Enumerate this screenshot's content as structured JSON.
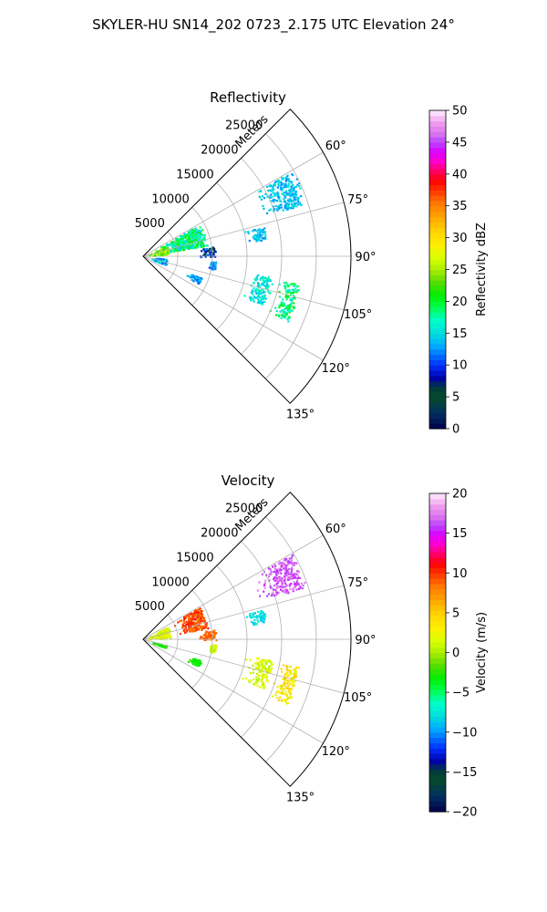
{
  "figure": {
    "title": "SKYLER-HU  SN14_202  0723_2.175 UTC Elevation 24°"
  },
  "chart_data": [
    {
      "type": "polar-sector",
      "title": "Reflectivity",
      "range_label": "Meters",
      "angle_range_deg": [
        45,
        135
      ],
      "r_max": 30000,
      "r_ticks": [
        5000,
        10000,
        15000,
        20000,
        25000
      ],
      "r_tick_labels": [
        "5000",
        "10000",
        "15000",
        "20000",
        "25000"
      ],
      "theta_ticks_deg": [
        60,
        75,
        90,
        105,
        120,
        135
      ],
      "theta_tick_labels": [
        "60°",
        "75°",
        "90°",
        "105°",
        "120°",
        "135°"
      ],
      "grid": true,
      "colorbar": {
        "label": "Reflectivity dBZ",
        "range": [
          0,
          50
        ],
        "ticks": [
          0,
          5,
          10,
          15,
          20,
          25,
          30,
          35,
          40,
          45,
          50
        ],
        "tick_labels": [
          "0",
          "5",
          "10",
          "15",
          "20",
          "25",
          "30",
          "35",
          "40",
          "45",
          "50"
        ]
      },
      "echo_regions": [
        {
          "theta": [
            60,
            80
          ],
          "r": [
            500,
            9500
          ],
          "value_range": [
            14,
            22
          ]
        },
        {
          "theta": [
            66,
            84
          ],
          "r": [
            300,
            3800
          ],
          "value_range": [
            20,
            27
          ]
        },
        {
          "theta": [
            82,
            90
          ],
          "r": [
            7000,
            10500
          ],
          "value_range": [
            3,
            12
          ]
        },
        {
          "theta": [
            94,
            100
          ],
          "r": [
            9000,
            10500
          ],
          "value_range": [
            9,
            15
          ]
        },
        {
          "theta": [
            96,
            110
          ],
          "r": [
            300,
            3500
          ],
          "value_range": [
            10,
            17
          ]
        },
        {
          "theta": [
            110,
            116
          ],
          "r": [
            6000,
            9000
          ],
          "value_range": [
            10,
            16
          ]
        },
        {
          "theta": [
            99,
            112
          ],
          "r": [
            14500,
            19000
          ],
          "value_range": [
            13,
            18
          ]
        },
        {
          "theta": [
            100,
            114
          ],
          "r": [
            19000,
            23000
          ],
          "value_range": [
            15,
            22
          ]
        },
        {
          "theta": [
            60,
            72
          ],
          "r": [
            16000,
            25000
          ],
          "value_range": [
            12,
            16
          ]
        },
        {
          "theta": [
            76,
            82
          ],
          "r": [
            14000,
            18000
          ],
          "value_range": [
            12,
            16
          ]
        }
      ]
    },
    {
      "type": "polar-sector",
      "title": "Velocity",
      "range_label": "Meters",
      "angle_range_deg": [
        45,
        135
      ],
      "r_max": 30000,
      "r_ticks": [
        5000,
        10000,
        15000,
        20000,
        25000
      ],
      "r_tick_labels": [
        "5000",
        "10000",
        "15000",
        "20000",
        "25000"
      ],
      "theta_ticks_deg": [
        60,
        75,
        90,
        105,
        120,
        135
      ],
      "theta_tick_labels": [
        "60°",
        "75°",
        "90°",
        "105°",
        "120°",
        "135°"
      ],
      "grid": true,
      "colorbar": {
        "label": "Velocity (m/s)",
        "range": [
          -20,
          20
        ],
        "ticks": [
          -20,
          -15,
          -10,
          -5,
          0,
          5,
          10,
          15,
          20
        ],
        "tick_labels": [
          "−20",
          "−15",
          "−10",
          "−5",
          "0",
          "5",
          "10",
          "15",
          "20"
        ]
      },
      "echo_regions": [
        {
          "theta": [
            60,
            80
          ],
          "r": [
            4000,
            9500
          ],
          "value_range": [
            8,
            11
          ]
        },
        {
          "theta": [
            62,
            86
          ],
          "r": [
            300,
            4000
          ],
          "value_range": [
            0,
            4
          ]
        },
        {
          "theta": [
            82,
            90
          ],
          "r": [
            7000,
            10500
          ],
          "value_range": [
            7,
            10
          ]
        },
        {
          "theta": [
            94,
            100
          ],
          "r": [
            9000,
            10500
          ],
          "value_range": [
            0,
            2
          ]
        },
        {
          "theta": [
            104,
            110
          ],
          "r": [
            400,
            3500
          ],
          "value_range": [
            -4,
            -2
          ]
        },
        {
          "theta": [
            110,
            116
          ],
          "r": [
            6000,
            9000
          ],
          "value_range": [
            -4,
            -2
          ]
        },
        {
          "theta": [
            99,
            112
          ],
          "r": [
            14500,
            19000
          ],
          "value_range": [
            0,
            3
          ]
        },
        {
          "theta": [
            100,
            114
          ],
          "r": [
            19000,
            23000
          ],
          "value_range": [
            1,
            6
          ]
        },
        {
          "theta": [
            60,
            72
          ],
          "r": [
            16000,
            25000
          ],
          "value_range": [
            15,
            18
          ]
        },
        {
          "theta": [
            76,
            82
          ],
          "r": [
            14000,
            18000
          ],
          "value_range": [
            -9,
            -7
          ]
        }
      ]
    }
  ]
}
